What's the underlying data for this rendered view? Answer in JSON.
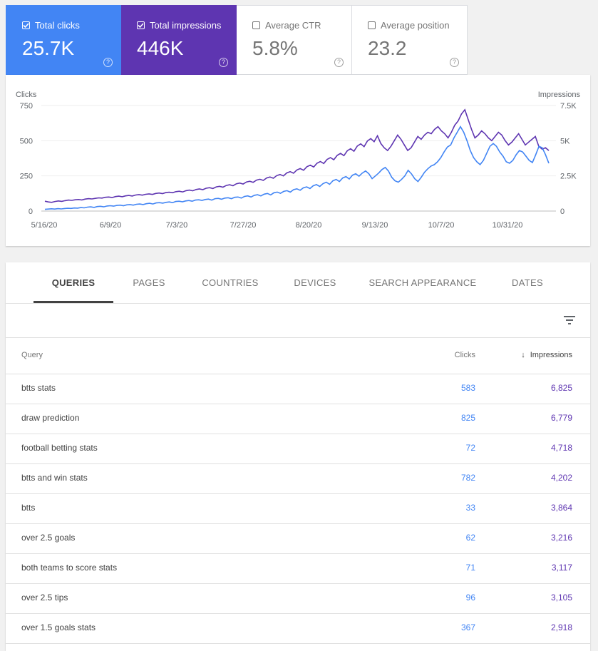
{
  "metrics": [
    {
      "label": "Total clicks",
      "value": "25.7K",
      "checked": true
    },
    {
      "label": "Total impressions",
      "value": "446K",
      "checked": true
    },
    {
      "label": "Average CTR",
      "value": "5.8%",
      "checked": false
    },
    {
      "label": "Average position",
      "value": "23.2",
      "checked": false
    }
  ],
  "help_glyph": "?",
  "chart_data": {
    "type": "line",
    "left_axis_label": "Clicks",
    "right_axis_label": "Impressions",
    "left_ticks": [
      "750",
      "500",
      "250",
      "0"
    ],
    "right_ticks": [
      "7.5K",
      "5K",
      "2.5K",
      "0"
    ],
    "left_range": [
      0,
      750
    ],
    "right_range": [
      0,
      7500
    ],
    "x_labels": [
      "5/16/20",
      "6/9/20",
      "7/3/20",
      "7/27/20",
      "8/20/20",
      "9/13/20",
      "10/7/20",
      "10/31/20"
    ],
    "grid": true,
    "colors": {
      "clicks": "#4285f4",
      "impressions": "#5e35b1"
    },
    "series": [
      {
        "name": "Clicks",
        "axis": "left",
        "color": "#4285f4",
        "x_range": [
          "5/16/20",
          "11/20/20"
        ],
        "values": [
          12,
          14,
          16,
          14,
          17,
          15,
          18,
          20,
          19,
          22,
          21,
          25,
          23,
          28,
          30,
          26,
          32,
          34,
          30,
          36,
          38,
          35,
          40,
          42,
          38,
          44,
          46,
          42,
          48,
          50,
          46,
          52,
          55,
          50,
          58,
          60,
          56,
          62,
          65,
          60,
          68,
          70,
          66,
          72,
          75,
          70,
          78,
          80,
          76,
          82,
          85,
          78,
          88,
          90,
          84,
          92,
          95,
          88,
          98,
          100,
          92,
          104,
          108,
          100,
          112,
          116,
          108,
          120,
          125,
          115,
          130,
          135,
          126,
          140,
          145,
          135,
          152,
          158,
          148,
          165,
          172,
          160,
          180,
          188,
          175,
          195,
          205,
          190,
          215,
          225,
          210,
          235,
          245,
          228,
          255,
          265,
          248,
          270,
          285,
          265,
          230,
          250,
          270,
          295,
          310,
          285,
          240,
          215,
          205,
          225,
          250,
          290,
          265,
          230,
          210,
          240,
          275,
          300,
          320,
          330,
          350,
          380,
          420,
          455,
          470,
          520,
          560,
          600,
          560,
          500,
          430,
          380,
          350,
          330,
          360,
          410,
          460,
          480,
          460,
          420,
          390,
          350,
          340,
          360,
          400,
          430,
          420,
          390,
          360,
          345,
          400,
          460,
          450,
          400,
          340
        ]
      },
      {
        "name": "Impressions",
        "axis": "right",
        "color": "#5e35b1",
        "x_range": [
          "5/16/20",
          "11/20/20"
        ],
        "values": [
          700,
          650,
          620,
          680,
          720,
          690,
          740,
          780,
          760,
          800,
          820,
          790,
          850,
          880,
          860,
          900,
          940,
          920,
          980,
          1000,
          960,
          1030,
          1060,
          1020,
          1080,
          1110,
          1070,
          1140,
          1170,
          1130,
          1190,
          1220,
          1180,
          1250,
          1280,
          1240,
          1310,
          1340,
          1300,
          1380,
          1410,
          1360,
          1450,
          1490,
          1440,
          1530,
          1570,
          1520,
          1620,
          1660,
          1600,
          1720,
          1760,
          1700,
          1820,
          1870,
          1800,
          1940,
          1990,
          1920,
          2070,
          2120,
          2040,
          2200,
          2260,
          2180,
          2350,
          2420,
          2330,
          2520,
          2600,
          2500,
          2710,
          2800,
          2690,
          2920,
          3020,
          2900,
          3150,
          3260,
          3130,
          3400,
          3520,
          3380,
          3670,
          3800,
          3650,
          3960,
          4100,
          3940,
          4280,
          4430,
          4250,
          4620,
          4780,
          4580,
          4980,
          5150,
          4930,
          5350,
          4800,
          4500,
          4300,
          4600,
          5000,
          5400,
          5100,
          4700,
          4300,
          4500,
          4900,
          5300,
          5100,
          5400,
          5600,
          5500,
          5800,
          6000,
          5700,
          5500,
          5200,
          5600,
          6100,
          6400,
          6900,
          7200,
          6500,
          5800,
          5200,
          5400,
          5700,
          5500,
          5200,
          5000,
          5300,
          5600,
          5400,
          5000,
          4700,
          4900,
          5200,
          5500,
          5100,
          4700,
          4900,
          5100,
          5300,
          4600,
          4400,
          4500,
          4300
        ]
      }
    ]
  },
  "tabs": [
    "QUERIES",
    "PAGES",
    "COUNTRIES",
    "DEVICES",
    "SEARCH APPEARANCE",
    "DATES"
  ],
  "table": {
    "headers": {
      "query": "Query",
      "clicks": "Clicks",
      "impressions": "Impressions"
    },
    "sort_arrow": "↓",
    "rows": [
      {
        "query": "btts stats",
        "clicks": "583",
        "impressions": "6,825"
      },
      {
        "query": "draw prediction",
        "clicks": "825",
        "impressions": "6,779"
      },
      {
        "query": "football betting stats",
        "clicks": "72",
        "impressions": "4,718"
      },
      {
        "query": "btts and win stats",
        "clicks": "782",
        "impressions": "4,202"
      },
      {
        "query": "btts",
        "clicks": "33",
        "impressions": "3,864"
      },
      {
        "query": "over 2.5 goals",
        "clicks": "62",
        "impressions": "3,216"
      },
      {
        "query": "both teams to score stats",
        "clicks": "71",
        "impressions": "3,117"
      },
      {
        "query": "over 2.5 tips",
        "clicks": "96",
        "impressions": "3,105"
      },
      {
        "query": "over 1.5 goals stats",
        "clicks": "367",
        "impressions": "2,918"
      }
    ]
  }
}
